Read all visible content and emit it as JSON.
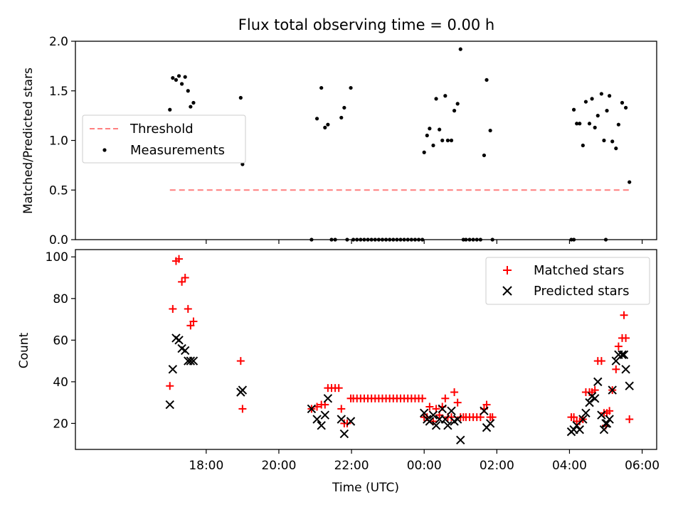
{
  "colors": {
    "threshold": "#ff7f7f",
    "measurement": "#000000",
    "matched": "#ff0000",
    "predicted": "#000000"
  },
  "chart_data": [
    {
      "type": "scatter",
      "title": "Flux total observing time = 0.00 h",
      "xlabel": "",
      "ylabel": "Matched/Predicted stars",
      "x_unit": "hours since 16:00 UTC",
      "xlim": [
        -1.6,
        14.4
      ],
      "ylim": [
        0.0,
        2.0
      ],
      "yticks": [
        0.0,
        0.5,
        1.0,
        1.5,
        2.0
      ],
      "ytick_labels": [
        "0.0",
        "0.5",
        "1.0",
        "1.5",
        "2.0"
      ],
      "xticks": [
        2,
        4,
        6,
        8,
        10,
        12,
        14
      ],
      "legend": {
        "position": "upper-left",
        "entries": [
          "Threshold",
          "Measurements"
        ]
      },
      "threshold": {
        "name": "Threshold",
        "y": 0.5,
        "x_range": [
          1.0,
          13.65
        ]
      },
      "series": [
        {
          "name": "Measurements",
          "points": [
            [
              1.0,
              1.31
            ],
            [
              1.08,
              1.63
            ],
            [
              1.17,
              1.61
            ],
            [
              1.25,
              1.65
            ],
            [
              1.33,
              1.57
            ],
            [
              1.42,
              1.64
            ],
            [
              1.5,
              1.5
            ],
            [
              1.57,
              1.34
            ],
            [
              1.65,
              1.38
            ],
            [
              2.95,
              1.43
            ],
            [
              3.0,
              0.76
            ],
            [
              4.9,
              0.0
            ],
            [
              5.05,
              1.22
            ],
            [
              5.17,
              1.53
            ],
            [
              5.27,
              1.13
            ],
            [
              5.35,
              1.16
            ],
            [
              5.45,
              0.0
            ],
            [
              5.55,
              0.0
            ],
            [
              5.72,
              1.23
            ],
            [
              5.8,
              1.33
            ],
            [
              5.88,
              0.0
            ],
            [
              5.98,
              1.53
            ],
            [
              6.05,
              0.0
            ],
            [
              6.15,
              0.0
            ],
            [
              6.25,
              0.0
            ],
            [
              6.35,
              0.0
            ],
            [
              6.45,
              0.0
            ],
            [
              6.55,
              0.0
            ],
            [
              6.65,
              0.0
            ],
            [
              6.75,
              0.0
            ],
            [
              6.85,
              0.0
            ],
            [
              6.95,
              0.0
            ],
            [
              7.05,
              0.0
            ],
            [
              7.15,
              0.0
            ],
            [
              7.25,
              0.0
            ],
            [
              7.35,
              0.0
            ],
            [
              7.45,
              0.0
            ],
            [
              7.55,
              0.0
            ],
            [
              7.65,
              0.0
            ],
            [
              7.75,
              0.0
            ],
            [
              7.85,
              0.0
            ],
            [
              7.95,
              0.0
            ],
            [
              8.0,
              0.88
            ],
            [
              8.08,
              1.05
            ],
            [
              8.15,
              1.12
            ],
            [
              8.25,
              0.95
            ],
            [
              8.33,
              1.42
            ],
            [
              8.42,
              1.11
            ],
            [
              8.5,
              1.0
            ],
            [
              8.58,
              1.45
            ],
            [
              8.65,
              1.0
            ],
            [
              8.75,
              1.0
            ],
            [
              8.83,
              1.3
            ],
            [
              8.92,
              1.37
            ],
            [
              9.0,
              1.92
            ],
            [
              9.08,
              0.0
            ],
            [
              9.15,
              0.0
            ],
            [
              9.25,
              0.0
            ],
            [
              9.35,
              0.0
            ],
            [
              9.45,
              0.0
            ],
            [
              9.55,
              0.0
            ],
            [
              9.65,
              0.85
            ],
            [
              9.72,
              1.61
            ],
            [
              9.82,
              1.1
            ],
            [
              9.88,
              0.0
            ],
            [
              12.05,
              0.0
            ],
            [
              12.12,
              0.0
            ],
            [
              12.12,
              1.31
            ],
            [
              12.2,
              1.17
            ],
            [
              12.28,
              1.17
            ],
            [
              12.37,
              0.95
            ],
            [
              12.45,
              1.39
            ],
            [
              12.55,
              1.17
            ],
            [
              12.62,
              1.42
            ],
            [
              12.7,
              1.13
            ],
            [
              12.78,
              1.25
            ],
            [
              12.88,
              1.47
            ],
            [
              12.95,
              1.0
            ],
            [
              13.0,
              0.0
            ],
            [
              13.03,
              1.3
            ],
            [
              13.1,
              1.45
            ],
            [
              13.18,
              0.99
            ],
            [
              13.28,
              0.92
            ],
            [
              13.35,
              1.16
            ],
            [
              13.45,
              1.38
            ],
            [
              13.55,
              1.33
            ],
            [
              13.65,
              0.58
            ]
          ]
        }
      ]
    },
    {
      "type": "scatter",
      "title": "",
      "xlabel": "Time (UTC)",
      "ylabel": "Count",
      "x_unit": "hours since 16:00 UTC",
      "xlim": [
        -1.6,
        14.4
      ],
      "ylim": [
        7.5,
        103.5
      ],
      "yticks": [
        20,
        40,
        60,
        80,
        100
      ],
      "ytick_labels": [
        "20",
        "40",
        "60",
        "80",
        "100"
      ],
      "xticks": [
        2,
        4,
        6,
        8,
        10,
        12,
        14
      ],
      "xtick_labels": [
        "18:00",
        "20:00",
        "22:00",
        "00:00",
        "02:00",
        "04:00",
        "06:00"
      ],
      "legend": {
        "position": "upper-right",
        "entries": [
          "Matched stars",
          "Predicted stars"
        ]
      },
      "series": [
        {
          "name": "Matched stars",
          "marker": "plus",
          "points": [
            [
              1.0,
              38
            ],
            [
              1.08,
              75
            ],
            [
              1.17,
              98
            ],
            [
              1.25,
              99
            ],
            [
              1.33,
              88
            ],
            [
              1.42,
              90
            ],
            [
              1.5,
              75
            ],
            [
              1.57,
              67
            ],
            [
              1.65,
              69
            ],
            [
              2.95,
              50
            ],
            [
              3.0,
              27
            ],
            [
              4.9,
              27
            ],
            [
              5.05,
              28
            ],
            [
              5.17,
              29
            ],
            [
              5.27,
              29
            ],
            [
              5.35,
              37
            ],
            [
              5.45,
              37
            ],
            [
              5.55,
              37
            ],
            [
              5.65,
              37
            ],
            [
              5.72,
              27
            ],
            [
              5.8,
              20
            ],
            [
              5.88,
              20
            ],
            [
              5.98,
              32
            ],
            [
              6.05,
              32
            ],
            [
              6.15,
              32
            ],
            [
              6.25,
              32
            ],
            [
              6.35,
              32
            ],
            [
              6.45,
              32
            ],
            [
              6.55,
              32
            ],
            [
              6.65,
              32
            ],
            [
              6.75,
              32
            ],
            [
              6.85,
              32
            ],
            [
              6.95,
              32
            ],
            [
              7.05,
              32
            ],
            [
              7.15,
              32
            ],
            [
              7.25,
              32
            ],
            [
              7.35,
              32
            ],
            [
              7.45,
              32
            ],
            [
              7.55,
              32
            ],
            [
              7.65,
              32
            ],
            [
              7.75,
              32
            ],
            [
              7.85,
              32
            ],
            [
              7.95,
              32
            ],
            [
              8.0,
              23
            ],
            [
              8.08,
              23
            ],
            [
              8.15,
              28
            ],
            [
              8.25,
              21
            ],
            [
              8.33,
              27
            ],
            [
              8.42,
              24
            ],
            [
              8.5,
              28
            ],
            [
              8.58,
              32
            ],
            [
              8.65,
              23
            ],
            [
              8.75,
              23
            ],
            [
              8.83,
              35
            ],
            [
              8.92,
              30
            ],
            [
              9.0,
              23
            ],
            [
              9.08,
              23
            ],
            [
              9.15,
              23
            ],
            [
              9.25,
              23
            ],
            [
              9.35,
              23
            ],
            [
              9.45,
              23
            ],
            [
              9.55,
              23
            ],
            [
              9.65,
              27
            ],
            [
              9.72,
              29
            ],
            [
              9.82,
              23
            ],
            [
              9.88,
              23
            ],
            [
              12.05,
              23
            ],
            [
              12.12,
              23
            ],
            [
              12.2,
              21
            ],
            [
              12.28,
              21
            ],
            [
              12.37,
              22
            ],
            [
              12.45,
              35
            ],
            [
              12.55,
              35
            ],
            [
              12.62,
              35
            ],
            [
              12.7,
              36
            ],
            [
              12.78,
              50
            ],
            [
              12.88,
              50
            ],
            [
              12.95,
              25
            ],
            [
              13.0,
              19
            ],
            [
              13.03,
              25
            ],
            [
              13.1,
              26
            ],
            [
              13.18,
              36
            ],
            [
              13.28,
              46
            ],
            [
              13.35,
              57
            ],
            [
              13.45,
              61
            ],
            [
              13.5,
              72
            ],
            [
              13.55,
              61
            ],
            [
              13.65,
              22
            ]
          ]
        },
        {
          "name": "Predicted stars",
          "marker": "x",
          "points": [
            [
              1.0,
              29
            ],
            [
              1.08,
              46
            ],
            [
              1.17,
              61
            ],
            [
              1.25,
              60
            ],
            [
              1.33,
              56
            ],
            [
              1.42,
              55
            ],
            [
              1.5,
              50
            ],
            [
              1.57,
              50
            ],
            [
              1.65,
              50
            ],
            [
              2.95,
              35
            ],
            [
              3.0,
              36
            ],
            [
              4.9,
              27
            ],
            [
              5.05,
              22
            ],
            [
              5.17,
              19
            ],
            [
              5.27,
              24
            ],
            [
              5.35,
              32
            ],
            [
              5.72,
              22
            ],
            [
              5.8,
              15
            ],
            [
              5.98,
              21
            ],
            [
              8.0,
              25
            ],
            [
              8.08,
              22
            ],
            [
              8.15,
              21
            ],
            [
              8.25,
              24
            ],
            [
              8.33,
              19
            ],
            [
              8.42,
              22
            ],
            [
              8.5,
              27
            ],
            [
              8.58,
              22
            ],
            [
              8.65,
              19
            ],
            [
              8.75,
              26
            ],
            [
              8.83,
              21
            ],
            [
              8.92,
              22
            ],
            [
              9.0,
              12
            ],
            [
              9.65,
              26
            ],
            [
              9.72,
              18
            ],
            [
              9.82,
              20
            ],
            [
              12.05,
              16
            ],
            [
              12.12,
              17
            ],
            [
              12.2,
              19
            ],
            [
              12.28,
              17
            ],
            [
              12.37,
              22
            ],
            [
              12.45,
              25
            ],
            [
              12.55,
              30
            ],
            [
              12.62,
              33
            ],
            [
              12.7,
              32
            ],
            [
              12.78,
              40
            ],
            [
              12.88,
              24
            ],
            [
              12.95,
              17
            ],
            [
              13.0,
              20
            ],
            [
              13.03,
              20
            ],
            [
              13.1,
              22
            ],
            [
              13.18,
              36
            ],
            [
              13.28,
              50
            ],
            [
              13.35,
              53
            ],
            [
              13.45,
              53
            ],
            [
              13.5,
              53
            ],
            [
              13.55,
              46
            ],
            [
              13.65,
              38
            ]
          ]
        }
      ]
    }
  ]
}
